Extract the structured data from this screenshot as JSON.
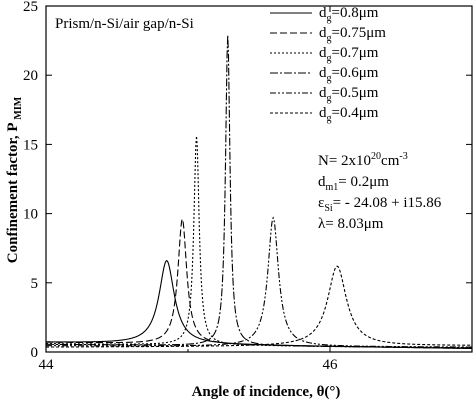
{
  "chart_data": {
    "type": "line",
    "inplot_title": "Prism/n-Si/air gap/n-Si",
    "xlabel": "Angle of incidence, θ(°)",
    "ylabel_main": "Confinement factor, P",
    "ylabel_sub": "MIM",
    "xlim": [
      44,
      47
    ],
    "ylim": [
      0,
      25
    ],
    "x_ticks": [
      44,
      46
    ],
    "x_tick_labels": [
      "44",
      "46"
    ],
    "x_minor_ticks": [
      45,
      47
    ],
    "y_ticks": [
      0,
      5,
      10,
      15,
      20,
      25
    ],
    "y_tick_labels": [
      "0",
      "5",
      "10",
      "15",
      "20",
      "25"
    ],
    "grid": false,
    "legend_position": "top-right",
    "series": [
      {
        "name": "d_g=0.8μm",
        "legend_prefix": "d",
        "legend_sub": "g",
        "legend_suffix": "=0.8μm",
        "dash": "solid",
        "peak_x": 44.85,
        "peak_y": 6.6,
        "width": 0.13,
        "baseline_left": 0.7,
        "baseline_right": 0.25
      },
      {
        "name": "d_g=0.75μm",
        "legend_prefix": "d",
        "legend_sub": "g",
        "legend_suffix": "=0.75μm",
        "dash": "long-dash",
        "peak_x": 44.96,
        "peak_y": 9.6,
        "width": 0.075,
        "baseline_left": 0.7,
        "baseline_right": 0.25
      },
      {
        "name": "d_g=0.7μm",
        "legend_prefix": "d",
        "legend_sub": "g",
        "legend_suffix": "=0.7μm",
        "dash": "dot",
        "peak_x": 45.06,
        "peak_y": 15.6,
        "width": 0.045,
        "baseline_left": 0.6,
        "baseline_right": 0.3
      },
      {
        "name": "d_g=0.6μm",
        "legend_prefix": "d",
        "legend_sub": "g",
        "legend_suffix": "=0.6μm",
        "dash": "dash-dot",
        "peak_x": 45.28,
        "peak_y": 22.9,
        "width": 0.038,
        "baseline_left": 0.55,
        "baseline_right": 0.3
      },
      {
        "name": "d_g=0.5μm",
        "legend_prefix": "d",
        "legend_sub": "g",
        "legend_suffix": "=0.5μm",
        "dash": "dash-dot-dot",
        "peak_x": 45.6,
        "peak_y": 9.7,
        "width": 0.09,
        "baseline_left": 0.45,
        "baseline_right": 0.35
      },
      {
        "name": "d_g=0.4μm",
        "legend_prefix": "d",
        "legend_sub": "g",
        "legend_suffix": "=0.4μm",
        "dash": "short-dash",
        "peak_x": 46.05,
        "peak_y": 6.2,
        "width": 0.16,
        "baseline_left": 0.35,
        "baseline_right": 0.45
      }
    ],
    "parameters": [
      {
        "prefix": "N= 2x10",
        "sup": "20",
        "mid": "cm",
        "sup2": "-3",
        "sub": "",
        "suffix": ""
      },
      {
        "prefix": "d",
        "sup": "",
        "mid": "",
        "sup2": "",
        "sub": "m1",
        "suffix": "= 0.2μm"
      },
      {
        "prefix": "ε",
        "sup": "",
        "mid": "",
        "sup2": "",
        "sub": "Si",
        "suffix": "= - 24.08 + i15.86"
      },
      {
        "prefix": "λ= 8.03μm",
        "sup": "",
        "mid": "",
        "sup2": "",
        "sub": "",
        "suffix": ""
      }
    ]
  }
}
